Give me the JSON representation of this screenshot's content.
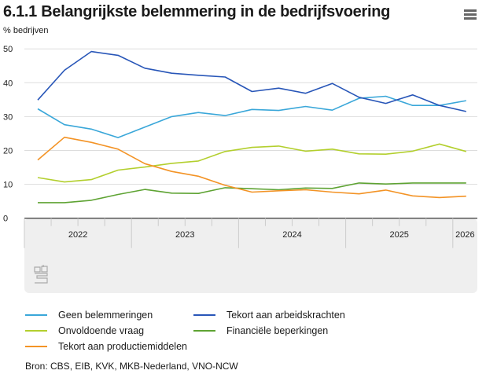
{
  "header": {
    "title": "6.1.1 Belangrijkste belemmering in de bedrijfsvoering",
    "subtitle": "% bedrijven",
    "menu_icon": "hamburger-menu-icon"
  },
  "chart_data": {
    "type": "line",
    "title": "6.1.1 Belangrijkste belemmering in de bedrijfsvoering",
    "ylabel": "% bedrijven",
    "ylim": [
      0,
      50
    ],
    "yticks": [
      0,
      10,
      20,
      30,
      40,
      50
    ],
    "x": [
      "2022Q1",
      "2022Q2",
      "2022Q3",
      "2022Q4",
      "2023Q1",
      "2023Q2",
      "2023Q3",
      "2023Q4",
      "2024Q1",
      "2024Q2",
      "2024Q3",
      "2024Q4",
      "2025Q1",
      "2025Q2",
      "2025Q3",
      "2025Q4",
      "2026Q1"
    ],
    "year_labels": [
      "2022",
      "2023",
      "2024",
      "2025",
      "2026"
    ],
    "grid": true,
    "legend_placement": "bottom",
    "series": [
      {
        "name": "Geen belemmeringen",
        "color": "#3aa7d9",
        "values": [
          32.3,
          27.6,
          26.3,
          23.8,
          26.9,
          30.0,
          31.2,
          30.3,
          32.1,
          31.8,
          33.0,
          31.9,
          35.4,
          36.0,
          33.3,
          33.3,
          34.7
        ]
      },
      {
        "name": "Tekort aan arbeidskrachten",
        "color": "#2856b8",
        "values": [
          34.9,
          43.7,
          49.2,
          48.1,
          44.3,
          42.8,
          42.2,
          41.7,
          37.4,
          38.4,
          36.9,
          39.8,
          35.7,
          33.9,
          36.4,
          33.3,
          31.5
        ]
      },
      {
        "name": "Onvoldoende vraag",
        "color": "#b3cf2e",
        "values": [
          12.0,
          10.7,
          11.4,
          14.2,
          15.1,
          16.2,
          16.9,
          19.7,
          20.9,
          21.3,
          19.8,
          20.4,
          19.0,
          18.9,
          19.8,
          21.9,
          19.7
        ]
      },
      {
        "name": "Financiële beperkingen",
        "color": "#5ea333",
        "values": [
          4.6,
          4.6,
          5.3,
          7.0,
          8.5,
          7.4,
          7.3,
          9.0,
          8.7,
          8.4,
          8.9,
          8.8,
          10.4,
          10.1,
          10.4,
          10.4,
          10.4
        ]
      },
      {
        "name": "Tekort aan productiemiddelen",
        "color": "#f39325",
        "values": [
          17.2,
          23.9,
          22.4,
          20.4,
          16.1,
          13.8,
          12.4,
          9.7,
          7.7,
          8.1,
          8.4,
          7.7,
          7.2,
          8.3,
          6.6,
          6.1,
          6.5
        ]
      }
    ]
  },
  "legend_order": [
    0,
    1,
    2,
    3,
    4
  ],
  "source": "Bron: CBS, EIB, KVK, MKB-Nederland, VNO-NCW"
}
